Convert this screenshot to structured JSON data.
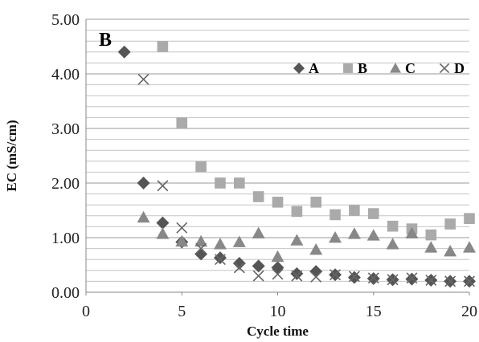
{
  "chart_data": {
    "type": "scatter",
    "title": "",
    "panel_label": "B",
    "xlabel": "Cycle time",
    "ylabel": "EC (mS/cm)",
    "xlim": [
      0,
      20
    ],
    "ylim": [
      0,
      5
    ],
    "x_ticks": [
      "0",
      "5",
      "10",
      "15",
      "20"
    ],
    "y_ticks": [
      "0.00",
      "1.00",
      "2.00",
      "3.00",
      "4.00",
      "5.00"
    ],
    "grid": true,
    "legend_position": "top-right",
    "series": [
      {
        "name": "A",
        "marker": "diamond",
        "color": "#555555",
        "x": [
          2,
          3,
          4,
          5,
          6,
          7,
          8,
          9,
          10,
          11,
          12,
          13,
          14,
          15,
          16,
          17,
          18,
          19,
          20
        ],
        "y": [
          4.4,
          2.0,
          1.27,
          0.92,
          0.7,
          0.63,
          0.53,
          0.48,
          0.45,
          0.34,
          0.38,
          0.32,
          0.27,
          0.25,
          0.23,
          0.24,
          0.22,
          0.2,
          0.2
        ]
      },
      {
        "name": "B",
        "marker": "square",
        "color": "#aaaaaa",
        "x": [
          4,
          5,
          6,
          7,
          8,
          9,
          10,
          11,
          12,
          13,
          14,
          15,
          16,
          17,
          18,
          19,
          20
        ],
        "y": [
          4.5,
          3.1,
          2.3,
          2.0,
          2.0,
          1.75,
          1.65,
          1.48,
          1.65,
          1.42,
          1.5,
          1.44,
          1.21,
          1.16,
          1.05,
          1.25,
          1.35
        ]
      },
      {
        "name": "C",
        "marker": "triangle",
        "color": "#888888",
        "x": [
          3,
          4,
          5,
          6,
          7,
          8,
          9,
          10,
          11,
          12,
          13,
          14,
          15,
          16,
          17,
          18,
          19,
          20
        ],
        "y": [
          1.37,
          1.07,
          0.93,
          0.93,
          0.88,
          0.92,
          1.08,
          0.65,
          0.95,
          0.78,
          1.0,
          1.07,
          1.04,
          0.88,
          1.08,
          0.82,
          0.75,
          0.82
        ]
      },
      {
        "name": "D",
        "marker": "x",
        "color": "#666666",
        "x": [
          3,
          4,
          5,
          6,
          7,
          8,
          9,
          10,
          11,
          12,
          13,
          14,
          15,
          16,
          17,
          18,
          19,
          20
        ],
        "y": [
          3.9,
          1.95,
          1.18,
          0.8,
          0.6,
          0.45,
          0.3,
          0.33,
          0.3,
          0.28,
          0.32,
          0.29,
          0.26,
          0.23,
          0.26,
          0.22,
          0.2,
          0.2
        ]
      }
    ]
  }
}
